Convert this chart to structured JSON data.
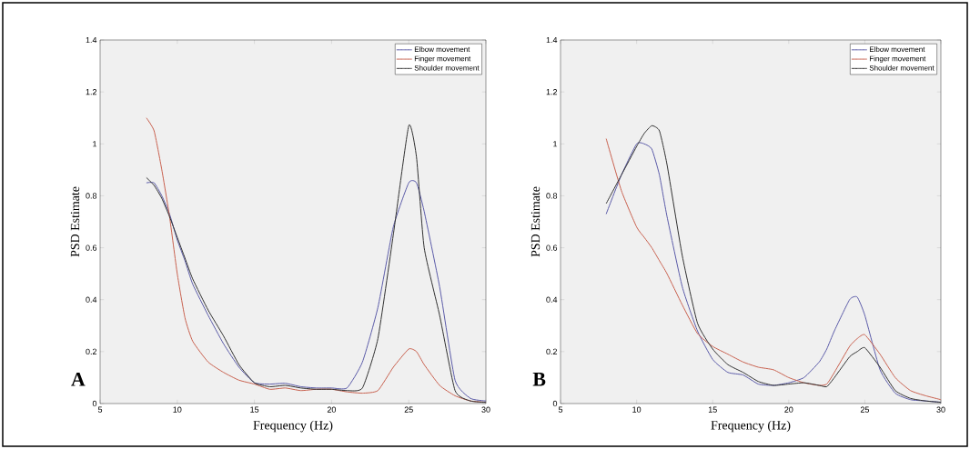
{
  "chart_data": [
    {
      "type": "line",
      "xlabel": "Frequency (Hz)",
      "ylabel": "PSD Estimate",
      "annotations": [
        "A"
      ],
      "legend": "top right",
      "xlim": [
        5,
        30
      ],
      "ylim": [
        0,
        1.4
      ],
      "xticks": [
        5,
        10,
        15,
        20,
        25,
        30
      ],
      "yticks": [
        0,
        0.2,
        0.4,
        0.6,
        0.8,
        1,
        1.2,
        1.4
      ],
      "x": [
        8,
        8.5,
        9,
        9.5,
        10,
        10.5,
        11,
        12,
        13,
        14,
        15,
        16,
        17,
        18,
        19,
        20,
        21,
        22,
        23,
        24,
        25,
        25.5,
        26,
        27,
        28,
        29,
        30
      ],
      "series": [
        {
          "name": "Elbow movement",
          "color": "#5a5aa8",
          "values": [
            0.85,
            0.85,
            0.8,
            0.73,
            0.63,
            0.55,
            0.46,
            0.34,
            0.23,
            0.14,
            0.08,
            0.075,
            0.078,
            0.065,
            0.06,
            0.06,
            0.06,
            0.16,
            0.37,
            0.68,
            0.85,
            0.85,
            0.74,
            0.45,
            0.09,
            0.02,
            0.01
          ]
        },
        {
          "name": "Finger movement",
          "color": "#c8604e",
          "values": [
            1.1,
            1.05,
            0.9,
            0.72,
            0.5,
            0.33,
            0.24,
            0.16,
            0.12,
            0.09,
            0.075,
            0.055,
            0.06,
            0.05,
            0.055,
            0.055,
            0.045,
            0.04,
            0.05,
            0.14,
            0.21,
            0.2,
            0.15,
            0.07,
            0.03,
            0.01,
            0.005
          ]
        },
        {
          "name": "Shoulder movement",
          "color": "#303030",
          "values": [
            0.87,
            0.84,
            0.79,
            0.72,
            0.64,
            0.56,
            0.48,
            0.36,
            0.26,
            0.15,
            0.08,
            0.065,
            0.07,
            0.06,
            0.055,
            0.055,
            0.05,
            0.06,
            0.25,
            0.65,
            1.07,
            0.95,
            0.6,
            0.34,
            0.05,
            0.01,
            0.005
          ]
        }
      ]
    },
    {
      "type": "line",
      "xlabel": "Frequency (Hz)",
      "ylabel": "PSD Estimate",
      "annotations": [
        "B"
      ],
      "legend": "top right",
      "xlim": [
        5,
        30
      ],
      "ylim": [
        0,
        1.4
      ],
      "xticks": [
        5,
        10,
        15,
        20,
        25,
        30
      ],
      "yticks": [
        0,
        0.2,
        0.4,
        0.6,
        0.8,
        1,
        1.2,
        1.4
      ],
      "x": [
        8,
        9,
        10,
        10.5,
        11,
        11.5,
        12,
        13,
        14,
        15,
        16,
        17,
        18,
        19,
        20,
        21,
        22,
        22.5,
        23,
        24,
        24.5,
        25,
        26,
        27,
        28,
        29,
        30
      ],
      "series": [
        {
          "name": "Elbow movement",
          "color": "#5a5aa8",
          "values": [
            0.73,
            0.88,
            1.0,
            1.0,
            0.98,
            0.88,
            0.72,
            0.45,
            0.28,
            0.17,
            0.12,
            0.11,
            0.075,
            0.07,
            0.08,
            0.1,
            0.16,
            0.21,
            0.28,
            0.4,
            0.41,
            0.34,
            0.13,
            0.04,
            0.015,
            0.01,
            0.005
          ]
        },
        {
          "name": "Finger movement",
          "color": "#c8604e",
          "values": [
            1.02,
            0.82,
            0.68,
            0.64,
            0.6,
            0.55,
            0.5,
            0.38,
            0.27,
            0.22,
            0.19,
            0.16,
            0.14,
            0.13,
            0.1,
            0.08,
            0.07,
            0.075,
            0.12,
            0.22,
            0.25,
            0.265,
            0.19,
            0.1,
            0.05,
            0.03,
            0.015
          ]
        },
        {
          "name": "Shoulder movement",
          "color": "#303030",
          "values": [
            0.77,
            0.88,
            0.99,
            1.04,
            1.07,
            1.05,
            0.92,
            0.57,
            0.31,
            0.21,
            0.15,
            0.12,
            0.085,
            0.07,
            0.075,
            0.08,
            0.07,
            0.065,
            0.1,
            0.18,
            0.2,
            0.215,
            0.14,
            0.05,
            0.02,
            0.01,
            0.005
          ]
        }
      ]
    }
  ]
}
